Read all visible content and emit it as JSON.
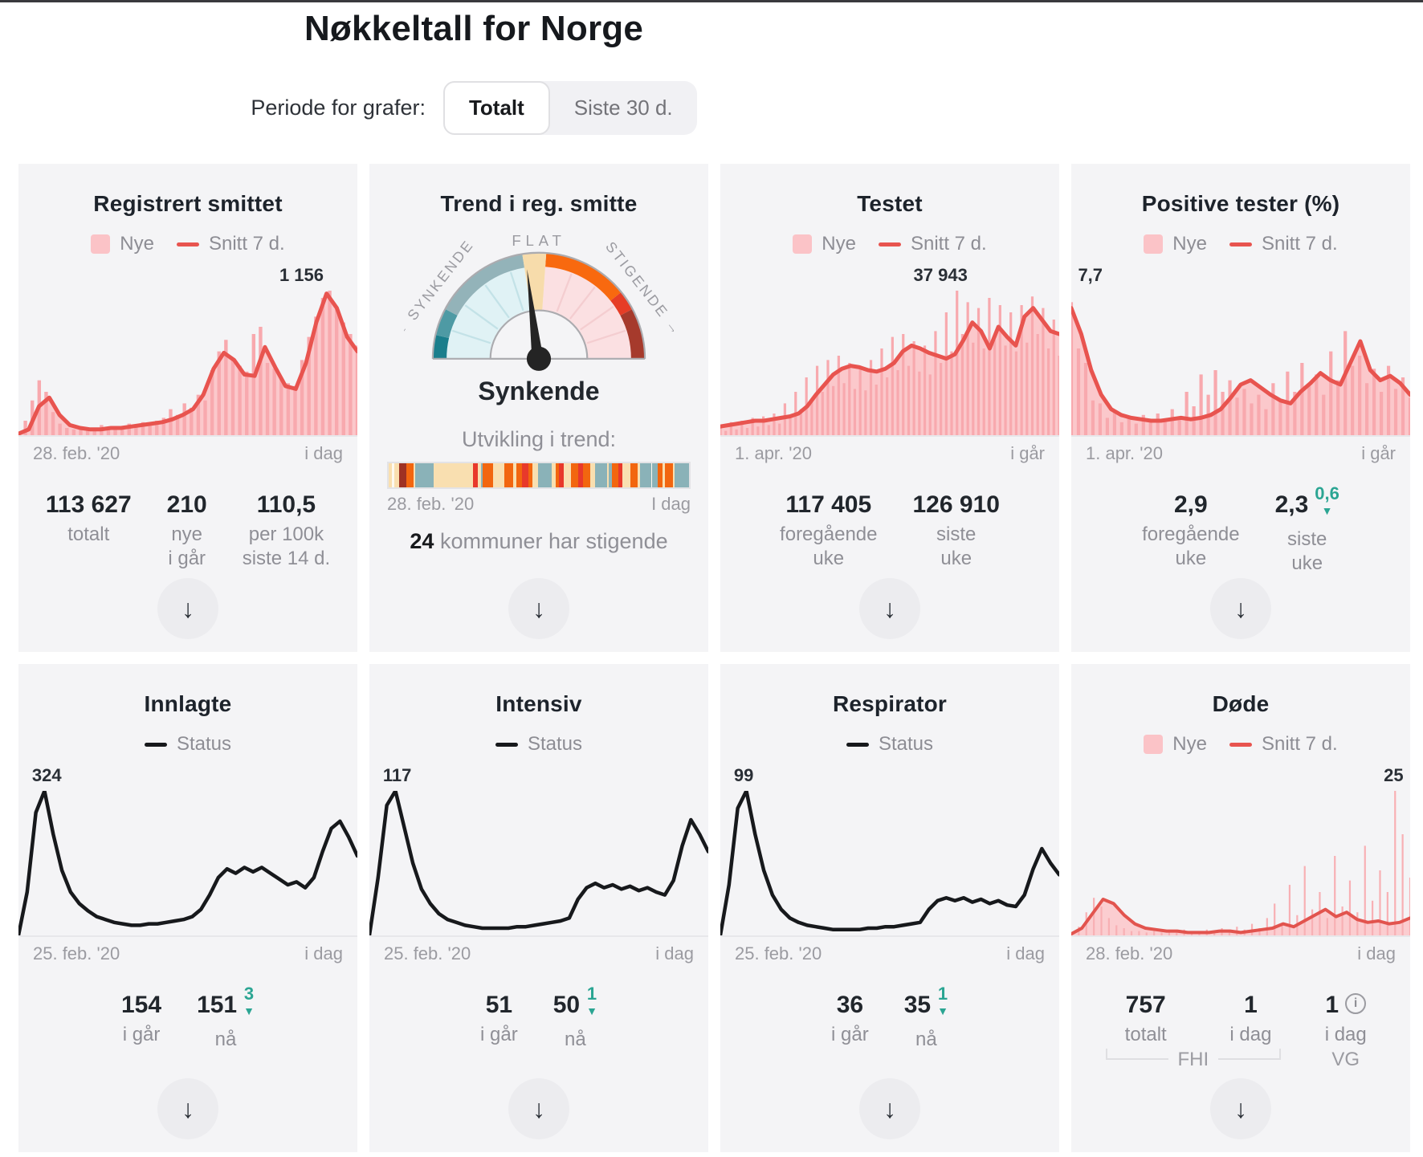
{
  "page": {
    "title": "Nøkkeltall for Norge"
  },
  "period": {
    "label": "Periode for grafer:",
    "options": [
      {
        "label": "Totalt",
        "selected": true
      },
      {
        "label": "Siste 30 d.",
        "selected": false
      }
    ]
  },
  "colors": {
    "card_bg": "#f4f4f6",
    "pink_area": "#fbc8cb",
    "pink_bar": "#f8a9ae",
    "red_line": "#e8544f",
    "black_line": "#17191c",
    "teal_delta": "#2ba593",
    "gauge_teal": "#1a7e8c",
    "gauge_orange": "#f8690f",
    "gauge_darkred": "#a63a2c"
  },
  "cards": [
    {
      "id": "registrert-smittet",
      "title": "Registrert smittet",
      "legend": [
        {
          "swatch": "pink-square",
          "label": "Nye"
        },
        {
          "swatch": "red-line",
          "label": "Snitt 7 d."
        }
      ],
      "peak": "1 156",
      "x_axis": {
        "start": "28. feb. '20",
        "end": "i dag"
      },
      "stats": [
        {
          "value": "113 627",
          "label": "totalt"
        },
        {
          "value": "210",
          "label": "nye\ni går"
        },
        {
          "value": "110,5",
          "label": "per 100k\nsiste 14 d."
        }
      ]
    },
    {
      "id": "trend",
      "title": "Trend i reg. smitte",
      "gauge": {
        "top_label": "FLAT",
        "left_label": "← SYNKENDE",
        "right_label": "STIGENDE →",
        "value": "Synkende"
      },
      "trend_strip": {
        "title": "Utvikling i trend:",
        "x_axis": {
          "start": "28. feb. '20",
          "end": "I dag"
        }
      },
      "footnote": {
        "count": "24",
        "text": "kommuner har stigende"
      }
    },
    {
      "id": "testet",
      "title": "Testet",
      "legend": [
        {
          "swatch": "pink-square",
          "label": "Nye"
        },
        {
          "swatch": "red-line",
          "label": "Snitt 7 d."
        }
      ],
      "peak": "37 943",
      "x_axis": {
        "start": "1. apr. '20",
        "end": "i går"
      },
      "stats": [
        {
          "value": "117 405",
          "label": "foregående\nuke"
        },
        {
          "value": "126 910",
          "label": "siste\nuke"
        }
      ]
    },
    {
      "id": "positive-tester",
      "title": "Positive tester (%)",
      "legend": [
        {
          "swatch": "pink-square",
          "label": "Nye"
        },
        {
          "swatch": "red-line",
          "label": "Snitt 7 d."
        }
      ],
      "peak": "7,7",
      "x_axis": {
        "start": "1. apr. '20",
        "end": "i går"
      },
      "stats": [
        {
          "value": "2,9",
          "label": "foregående\nuke"
        },
        {
          "value": "2,3",
          "label": "siste\nuke",
          "delta": {
            "value": "0,6",
            "direction": "down"
          }
        }
      ]
    },
    {
      "id": "innlagte",
      "title": "Innlagte",
      "legend": [
        {
          "swatch": "black-line",
          "label": "Status"
        }
      ],
      "peak": "324",
      "x_axis": {
        "start": "25. feb. '20",
        "end": "i dag"
      },
      "stats": [
        {
          "value": "154",
          "label": "i går"
        },
        {
          "value": "151",
          "label": "nå",
          "delta": {
            "value": "3",
            "direction": "down"
          }
        }
      ]
    },
    {
      "id": "intensiv",
      "title": "Intensiv",
      "legend": [
        {
          "swatch": "black-line",
          "label": "Status"
        }
      ],
      "peak": "117",
      "x_axis": {
        "start": "25. feb. '20",
        "end": "i dag"
      },
      "stats": [
        {
          "value": "51",
          "label": "i går"
        },
        {
          "value": "50",
          "label": "nå",
          "delta": {
            "value": "1",
            "direction": "down"
          }
        }
      ]
    },
    {
      "id": "respirator",
      "title": "Respirator",
      "legend": [
        {
          "swatch": "black-line",
          "label": "Status"
        }
      ],
      "peak": "99",
      "x_axis": {
        "start": "25. feb. '20",
        "end": "i dag"
      },
      "stats": [
        {
          "value": "36",
          "label": "i går"
        },
        {
          "value": "35",
          "label": "nå",
          "delta": {
            "value": "1",
            "direction": "down"
          }
        }
      ]
    },
    {
      "id": "dode",
      "title": "Døde",
      "legend": [
        {
          "swatch": "pink-square",
          "label": "Nye"
        },
        {
          "swatch": "red-line",
          "label": "Snitt 7 d."
        }
      ],
      "peak": "25",
      "x_axis": {
        "start": "28. feb. '20",
        "end": "i dag"
      },
      "stats": [
        {
          "value": "757",
          "label": "totalt"
        },
        {
          "value": "1",
          "label": "i dag"
        },
        {
          "value": "1",
          "label": "i dag",
          "info": true
        }
      ],
      "sources": {
        "fhi": "FHI",
        "vg": "VG"
      }
    }
  ],
  "chart_data": [
    {
      "card": "registrert-smittet",
      "type": "area",
      "unit": "normalized_0_100",
      "peak_value_label": "1 156",
      "line": [
        1,
        4,
        20,
        26,
        14,
        7,
        5,
        4,
        4,
        5,
        5,
        6,
        7,
        8,
        9,
        11,
        14,
        18,
        28,
        46,
        57,
        52,
        42,
        41,
        61,
        47,
        34,
        32,
        50,
        78,
        98,
        88,
        68,
        58
      ],
      "bars": [
        2,
        10,
        24,
        38,
        30,
        16,
        8,
        5,
        4,
        6,
        3,
        5,
        7,
        4,
        6,
        5,
        8,
        6,
        9,
        7,
        10,
        12,
        18,
        14,
        22,
        19,
        28,
        24,
        45,
        58,
        66,
        52,
        48,
        44,
        70,
        75,
        50,
        46,
        40,
        36,
        34,
        52,
        68,
        82,
        95,
        100,
        88,
        78,
        70,
        62
      ]
    },
    {
      "card": "trend",
      "type": "gauge",
      "value": "Synkende",
      "needle_position": "slightly left of FLAT",
      "strip_segments": [
        [
          "cream",
          1.2
        ],
        [
          "white",
          0.8
        ],
        [
          "cream",
          1.5
        ],
        [
          "darkred",
          2.3
        ],
        [
          "orange",
          2.4
        ],
        [
          "cream",
          0.6
        ],
        [
          "teal",
          6.2
        ],
        [
          "cream",
          13
        ],
        [
          "red",
          1.8
        ],
        [
          "cream",
          1.0
        ],
        [
          "teal",
          0.6
        ],
        [
          "orange",
          3.4
        ],
        [
          "cream",
          3.8
        ],
        [
          "orange",
          2.8
        ],
        [
          "cream",
          1.0
        ],
        [
          "orange",
          2.0
        ],
        [
          "red",
          2.0
        ],
        [
          "orange",
          1.4
        ],
        [
          "cream",
          2.0
        ],
        [
          "teal",
          4.4
        ],
        [
          "cream",
          1.4
        ],
        [
          "orange",
          1.0
        ],
        [
          "red",
          1.6
        ],
        [
          "cream",
          2.4
        ],
        [
          "orange",
          2.6
        ],
        [
          "red",
          1.4
        ],
        [
          "orange",
          2.4
        ],
        [
          "cream",
          1.8
        ],
        [
          "teal",
          3.8
        ],
        [
          "cream",
          0.6
        ],
        [
          "teal",
          1.0
        ],
        [
          "orange",
          2.4
        ],
        [
          "red",
          1.2
        ],
        [
          "cream",
          2.8
        ],
        [
          "orange",
          2.4
        ],
        [
          "cream",
          0.8
        ],
        [
          "teal",
          3.6
        ],
        [
          "white",
          0.4
        ],
        [
          "teal",
          1.8
        ],
        [
          "orange",
          1.6
        ],
        [
          "cream",
          0.8
        ],
        [
          "orange",
          2.6
        ],
        [
          "cream",
          0.6
        ],
        [
          "teal",
          4.8
        ]
      ]
    },
    {
      "card": "testet",
      "type": "area",
      "unit": "normalized_0_100",
      "peak_value_label": "37 943",
      "line": [
        6,
        7,
        8,
        9,
        10,
        10,
        11,
        12,
        13,
        15,
        20,
        28,
        35,
        42,
        46,
        48,
        47,
        45,
        44,
        46,
        50,
        58,
        62,
        60,
        57,
        55,
        53,
        56,
        66,
        78,
        72,
        60,
        75,
        68,
        62,
        82,
        88,
        80,
        72,
        70
      ],
      "bars": [
        7,
        3,
        9,
        4,
        10,
        5,
        12,
        6,
        13,
        7,
        15,
        8,
        22,
        12,
        30,
        18,
        40,
        25,
        48,
        30,
        52,
        34,
        55,
        36,
        50,
        32,
        48,
        31,
        52,
        35,
        60,
        40,
        68,
        45,
        70,
        48,
        65,
        44,
        62,
        42,
        72,
        50,
        85,
        58,
        100,
        70,
        92,
        64,
        88,
        60,
        95,
        66,
        90,
        62,
        85,
        58,
        90,
        64,
        96,
        70,
        88,
        60,
        80,
        55
      ]
    },
    {
      "card": "positive-tester",
      "type": "area",
      "unit": "normalized_0_100",
      "peak_value_label": "7,7",
      "line": [
        88,
        70,
        45,
        28,
        18,
        14,
        12,
        11,
        10,
        10,
        11,
        12,
        11,
        12,
        14,
        18,
        26,
        35,
        38,
        33,
        28,
        24,
        22,
        30,
        36,
        43,
        38,
        35,
        50,
        65,
        45,
        38,
        41,
        36,
        28
      ],
      "bars": [
        92,
        60,
        50,
        24,
        22,
        12,
        16,
        9,
        13,
        8,
        14,
        9,
        15,
        10,
        18,
        12,
        30,
        20,
        42,
        28,
        45,
        30,
        38,
        26,
        32,
        22,
        28,
        18,
        36,
        24,
        44,
        30,
        50,
        34,
        42,
        28,
        58,
        38,
        72,
        48,
        55,
        36,
        46,
        30,
        48,
        32,
        40,
        26
      ]
    },
    {
      "card": "innlagte",
      "type": "line",
      "unit": "normalized_0_100",
      "peak_value_label": "324",
      "line": [
        0,
        30,
        85,
        100,
        70,
        45,
        30,
        22,
        17,
        13,
        11,
        9,
        8,
        7,
        7,
        8,
        8,
        9,
        10,
        11,
        13,
        18,
        28,
        40,
        46,
        43,
        47,
        44,
        47,
        43,
        39,
        35,
        37,
        33,
        40,
        58,
        74,
        79,
        68,
        55
      ]
    },
    {
      "card": "intensiv",
      "type": "line",
      "unit": "normalized_0_100",
      "peak_value_label": "117",
      "line": [
        0,
        40,
        90,
        100,
        75,
        50,
        32,
        22,
        15,
        11,
        9,
        7,
        6,
        5,
        5,
        5,
        5,
        6,
        6,
        7,
        8,
        9,
        10,
        12,
        25,
        33,
        36,
        33,
        35,
        32,
        34,
        31,
        33,
        30,
        28,
        38,
        62,
        80,
        70,
        58
      ]
    },
    {
      "card": "respirator",
      "type": "line",
      "unit": "normalized_0_100",
      "peak_value_label": "99",
      "line": [
        0,
        35,
        88,
        100,
        70,
        45,
        28,
        18,
        12,
        9,
        7,
        6,
        5,
        4,
        4,
        4,
        4,
        5,
        5,
        6,
        6,
        7,
        8,
        9,
        18,
        24,
        26,
        24,
        26,
        23,
        25,
        22,
        24,
        21,
        20,
        28,
        46,
        60,
        50,
        42
      ]
    },
    {
      "card": "dode",
      "type": "area",
      "unit": "normalized_0_100",
      "peak_value_label": "25",
      "line": [
        1,
        5,
        15,
        25,
        22,
        14,
        8,
        5,
        4,
        3,
        3,
        2,
        2,
        2,
        3,
        3,
        2,
        3,
        4,
        5,
        8,
        6,
        10,
        14,
        18,
        13,
        16,
        11,
        9,
        10,
        8,
        9,
        12
      ],
      "bars": [
        2,
        6,
        16,
        26,
        20,
        12,
        7,
        5,
        3,
        3,
        2,
        3,
        2,
        3,
        2,
        4,
        3,
        2,
        4,
        3,
        5,
        3,
        6,
        4,
        8,
        5,
        12,
        22,
        8,
        35,
        14,
        48,
        18,
        30,
        12,
        55,
        20,
        38,
        16,
        62,
        24,
        45,
        30,
        100,
        70,
        40
      ]
    }
  ]
}
